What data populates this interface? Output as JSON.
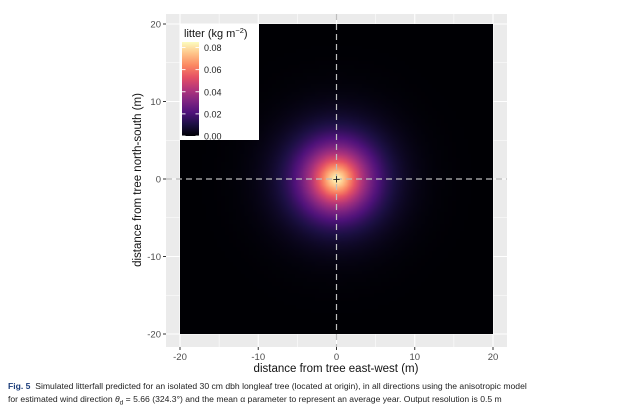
{
  "chart_data": {
    "type": "heatmap",
    "xlabel": "distance from tree east-west (m)",
    "ylabel": "distance from tree north-south (m)",
    "xlim": [
      -20,
      20
    ],
    "ylim": [
      -20,
      20
    ],
    "x_ticks": [
      "-20",
      "-10",
      "0",
      "10",
      "20"
    ],
    "y_ticks": [
      "20",
      "10",
      "0",
      "-10",
      "-20"
    ],
    "grid": true,
    "reference_lines": {
      "x": 0,
      "y": 0,
      "style": "dashed"
    },
    "origin_marker": "+",
    "legend": {
      "title_prefix": "litter (kg m",
      "title_exp": "−2",
      "title_suffix": ")",
      "placement": "top-left",
      "range": [
        0,
        0.085
      ],
      "breaks": [
        "0.08",
        "0.06",
        "0.04",
        "0.02",
        "0.00"
      ],
      "break_values": [
        0.08,
        0.06,
        0.04,
        0.02,
        0.0
      ],
      "palette": [
        "#000004",
        "#1c1044",
        "#4f127b",
        "#812581",
        "#b5367a",
        "#e55064",
        "#fb8761",
        "#fec287",
        "#fcfdbf"
      ]
    },
    "peak_value": 0.085,
    "peak_location": [
      0,
      0
    ],
    "spread_m": 4.2
  },
  "caption": {
    "label": "Fig. 5",
    "line1": "Simulated litterfall predicted for an isolated 30 cm dbh longleaf tree (located at origin), in all directions using the anisotropic model",
    "line2_a": "for estimated wind direction ",
    "theta": "θ",
    "theta_sub": "d",
    "line2_b": " = 5.66 (324.3°) and the mean α parameter to represent an average year. Output resolution is 0.5 m"
  }
}
